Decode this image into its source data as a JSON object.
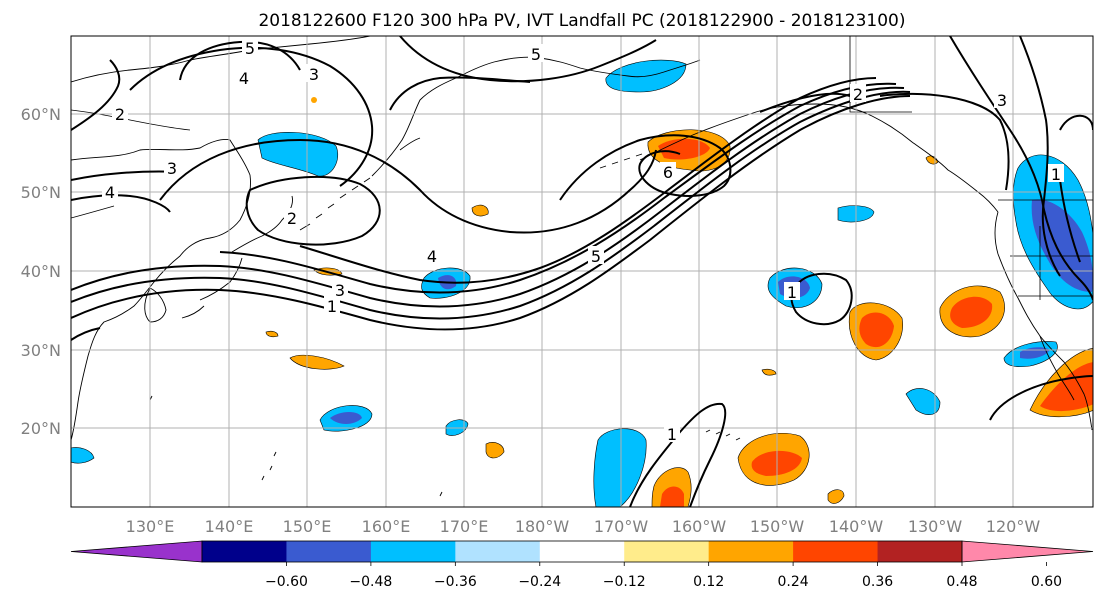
{
  "title": "2018122600 F120 300 hPa PV, IVT Landfall PC (2018122900 - 2018123100)",
  "map": {
    "lon_labels": [
      "130°E",
      "140°E",
      "150°E",
      "160°E",
      "170°E",
      "180°W",
      "170°W",
      "160°W",
      "150°W",
      "140°W",
      "130°W",
      "120°W"
    ],
    "lat_labels": [
      "60°N",
      "50°N",
      "40°N",
      "30°N",
      "20°N"
    ],
    "contour_labels": [
      "5",
      "4",
      "3",
      "2",
      "3",
      "4",
      "2",
      "4",
      "3",
      "1",
      "5",
      "6",
      "5",
      "2",
      "3",
      "1",
      "1",
      "1"
    ]
  },
  "colorbar": {
    "tick_labels": [
      "−0.60",
      "−0.48",
      "−0.36",
      "−0.24",
      "−0.12",
      "0.12",
      "0.24",
      "0.36",
      "0.48",
      "0.60"
    ],
    "colors": [
      "#9932cc",
      "#00008b",
      "#3a5bd0",
      "#00bfff",
      "#b0e2ff",
      "#ffffff",
      "#ffec8b",
      "#ffa500",
      "#ff4500",
      "#b22222",
      "#ff88aa"
    ]
  }
}
